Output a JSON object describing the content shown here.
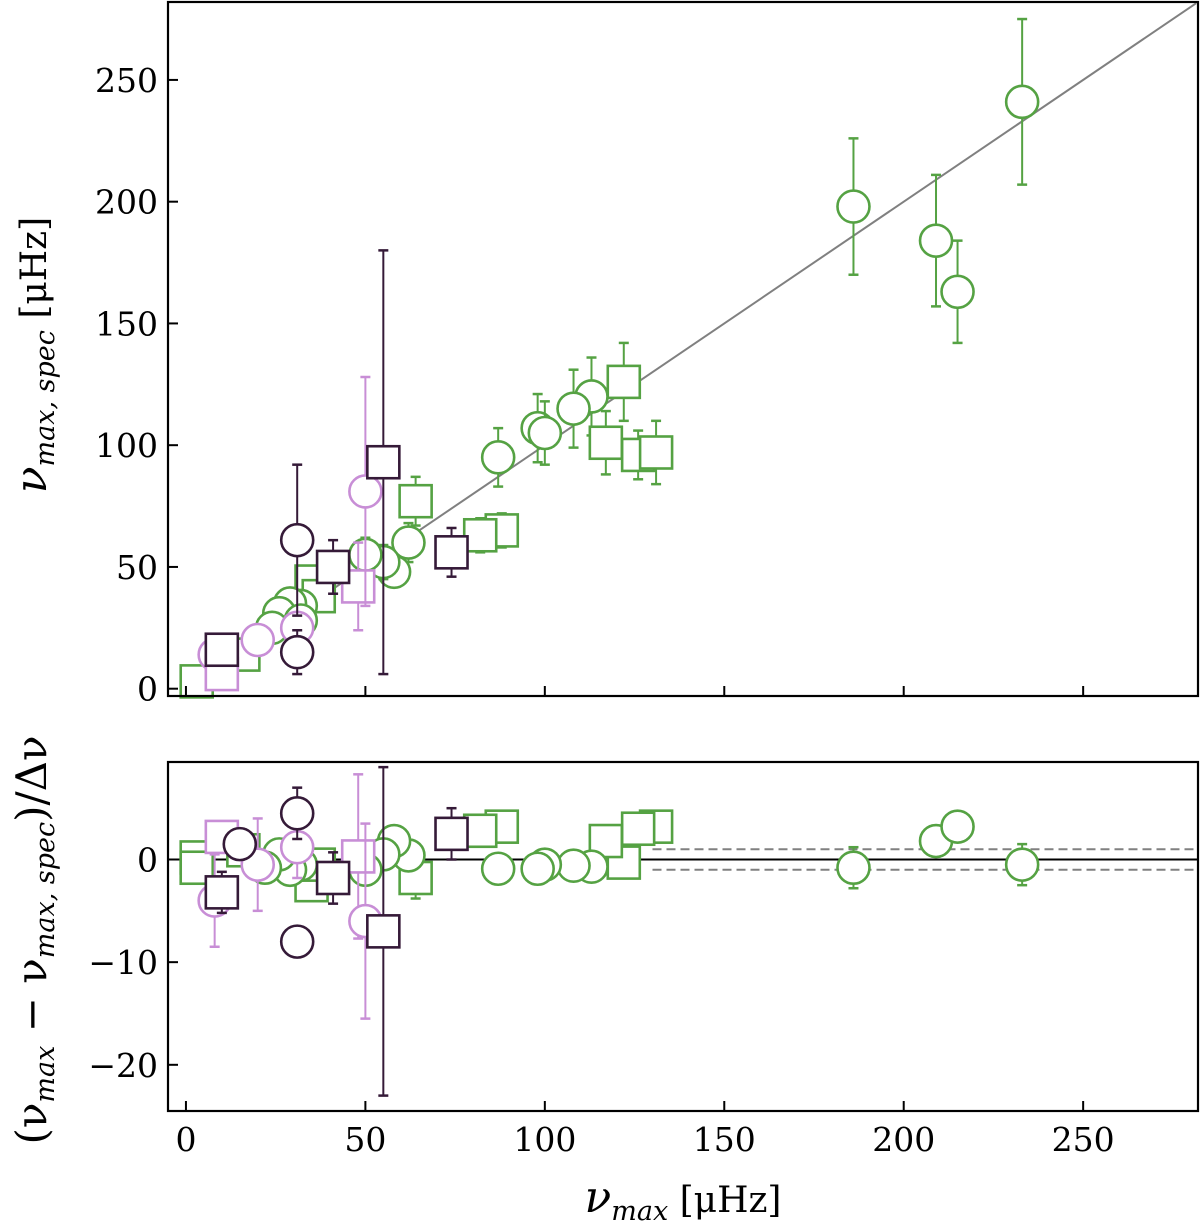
{
  "chart_data": [
    {
      "type": "scatter",
      "panel": "top",
      "ylabel": "νmax, spec [μHz]",
      "ylabel_parts": {
        "base": "ν",
        "sub": "max, spec",
        "unit": " [μHz]"
      },
      "xlim": [
        -5,
        282
      ],
      "ylim": [
        -3,
        282
      ],
      "xticks": [
        0,
        50,
        100,
        150,
        200,
        250
      ],
      "yticks": [
        0,
        50,
        100,
        150,
        200,
        250
      ],
      "ytick_labels": [
        "0",
        "50",
        "100",
        "150",
        "200",
        "250"
      ],
      "reference_line": "y = x",
      "colors": {
        "green": "#55a243",
        "dark": "#351a38",
        "light": "#c88ed6",
        "ref": "#808080"
      },
      "points": [
        {
          "x": 233,
          "y": 241,
          "err": 34,
          "shape": "circle",
          "color": "green"
        },
        {
          "x": 186,
          "y": 198,
          "err": 28,
          "shape": "circle",
          "color": "green"
        },
        {
          "x": 209,
          "y": 184,
          "err": 27,
          "shape": "circle",
          "color": "green"
        },
        {
          "x": 215,
          "y": 163,
          "err": 21,
          "shape": "circle",
          "color": "green"
        },
        {
          "x": 122,
          "y": 126,
          "err": 16,
          "shape": "square",
          "color": "green"
        },
        {
          "x": 113,
          "y": 120,
          "err": 16,
          "shape": "circle",
          "color": "green"
        },
        {
          "x": 108,
          "y": 115,
          "err": 16,
          "shape": "circle",
          "color": "green"
        },
        {
          "x": 98,
          "y": 107,
          "err": 14,
          "shape": "circle",
          "color": "green"
        },
        {
          "x": 100,
          "y": 105,
          "err": 13,
          "shape": "circle",
          "color": "green"
        },
        {
          "x": 117,
          "y": 101,
          "err": 13,
          "shape": "square",
          "color": "green"
        },
        {
          "x": 126,
          "y": 96,
          "err": 10,
          "shape": "square",
          "color": "green"
        },
        {
          "x": 131,
          "y": 97,
          "err": 13,
          "shape": "square",
          "color": "green"
        },
        {
          "x": 87,
          "y": 95,
          "err": 12,
          "shape": "circle",
          "color": "green"
        },
        {
          "x": 64,
          "y": 77,
          "err": 10,
          "shape": "square",
          "color": "green"
        },
        {
          "x": 88,
          "y": 65,
          "err": 7,
          "shape": "square",
          "color": "green"
        },
        {
          "x": 82,
          "y": 63,
          "err": 7,
          "shape": "square",
          "color": "green"
        },
        {
          "x": 62,
          "y": 60,
          "err": 8,
          "shape": "circle",
          "color": "green"
        },
        {
          "x": 58,
          "y": 48,
          "err": 6,
          "shape": "circle",
          "color": "green"
        },
        {
          "x": 55,
          "y": 52,
          "err": 7,
          "shape": "circle",
          "color": "green"
        },
        {
          "x": 50,
          "y": 55,
          "err": 7,
          "shape": "circle",
          "color": "green"
        },
        {
          "x": 35,
          "y": 44,
          "err": 6,
          "shape": "square",
          "color": "green"
        },
        {
          "x": 37,
          "y": 38,
          "err": 5,
          "shape": "square",
          "color": "green"
        },
        {
          "x": 32,
          "y": 34,
          "err": 5,
          "shape": "circle",
          "color": "green"
        },
        {
          "x": 29,
          "y": 35,
          "err": 5,
          "shape": "circle",
          "color": "green"
        },
        {
          "x": 26,
          "y": 31,
          "err": 4,
          "shape": "circle",
          "color": "green"
        },
        {
          "x": 24,
          "y": 25,
          "err": 4,
          "shape": "circle",
          "color": "green"
        },
        {
          "x": 16,
          "y": 14,
          "err": 3,
          "shape": "square",
          "color": "green"
        },
        {
          "x": 3,
          "y": 3,
          "err": 2,
          "shape": "square",
          "color": "green"
        },
        {
          "x": 32,
          "y": 28,
          "err": 4,
          "shape": "circle",
          "color": "green"
        },
        {
          "x": 48,
          "y": 42,
          "err": 18,
          "shape": "square",
          "color": "light"
        },
        {
          "x": 50,
          "y": 81,
          "err": 47,
          "shape": "circle",
          "color": "light"
        },
        {
          "x": 31,
          "y": 25,
          "err": 5,
          "shape": "circle",
          "color": "light"
        },
        {
          "x": 20,
          "y": 20,
          "err": 3,
          "shape": "circle",
          "color": "light"
        },
        {
          "x": 8,
          "y": 14,
          "err": 3,
          "shape": "circle",
          "color": "light"
        },
        {
          "x": 10,
          "y": 6,
          "err": 3,
          "shape": "square",
          "color": "light"
        },
        {
          "x": 55,
          "y": 93,
          "err": 87,
          "shape": "square",
          "color": "dark"
        },
        {
          "x": 31,
          "y": 61,
          "err": 31,
          "shape": "circle",
          "color": "dark"
        },
        {
          "x": 41,
          "y": 50,
          "err": 11,
          "shape": "square",
          "color": "dark"
        },
        {
          "x": 74,
          "y": 56,
          "err": 10,
          "shape": "square",
          "color": "dark"
        },
        {
          "x": 31,
          "y": 15,
          "err": 9,
          "shape": "circle",
          "color": "dark"
        },
        {
          "x": 10,
          "y": 16,
          "err": 3,
          "shape": "square",
          "color": "dark"
        }
      ]
    },
    {
      "type": "scatter",
      "panel": "bottom",
      "xlabel": "νmax [μHz]",
      "xlabel_parts": {
        "base": "ν",
        "sub": "max",
        "unit": " [μHz]"
      },
      "ylabel": "(νmax − νmax, spec)/Δν",
      "ylabel_parts": {
        "open": "(ν",
        "sub1": "max",
        "mid": " − ν",
        "sub2": "max, spec",
        "close": ")/Δν"
      },
      "xlim": [
        -5,
        282
      ],
      "ylim": [
        -24.5,
        9.5
      ],
      "xticks": [
        0,
        50,
        100,
        150,
        200,
        250
      ],
      "xtick_labels": [
        "0",
        "50",
        "100",
        "150",
        "200",
        "250"
      ],
      "yticks": [
        -20,
        -10,
        0
      ],
      "ytick_labels": [
        "−20",
        "−10",
        "0"
      ],
      "zero_line": 0,
      "band": {
        "from": 130,
        "lower": -1,
        "upper": 1
      },
      "points": [
        {
          "x": 233,
          "y": -0.5,
          "err": 2,
          "shape": "circle",
          "color": "green"
        },
        {
          "x": 186,
          "y": -0.8,
          "err": 2,
          "shape": "circle",
          "color": "green"
        },
        {
          "x": 209,
          "y": 1.8,
          "err": 1.5,
          "shape": "circle",
          "color": "green"
        },
        {
          "x": 215,
          "y": 3.2,
          "err": 1,
          "shape": "circle",
          "color": "green"
        },
        {
          "x": 131,
          "y": 3.2,
          "err": 1,
          "shape": "square",
          "color": "green"
        },
        {
          "x": 126,
          "y": 3.0,
          "err": 1,
          "shape": "square",
          "color": "green"
        },
        {
          "x": 122,
          "y": -0.3,
          "err": 1.5,
          "shape": "square",
          "color": "green"
        },
        {
          "x": 117,
          "y": 1.8,
          "err": 1,
          "shape": "square",
          "color": "green"
        },
        {
          "x": 113,
          "y": -0.7,
          "err": 1.5,
          "shape": "circle",
          "color": "green"
        },
        {
          "x": 108,
          "y": -0.6,
          "err": 1.5,
          "shape": "circle",
          "color": "green"
        },
        {
          "x": 100,
          "y": -0.5,
          "err": 1.5,
          "shape": "circle",
          "color": "green"
        },
        {
          "x": 98,
          "y": -0.9,
          "err": 1.5,
          "shape": "circle",
          "color": "green"
        },
        {
          "x": 88,
          "y": 3.2,
          "err": 1,
          "shape": "square",
          "color": "green"
        },
        {
          "x": 82,
          "y": 2.8,
          "err": 1,
          "shape": "square",
          "color": "green"
        },
        {
          "x": 87,
          "y": -0.9,
          "err": 1.2,
          "shape": "circle",
          "color": "green"
        },
        {
          "x": 64,
          "y": -1.8,
          "err": 2,
          "shape": "square",
          "color": "green"
        },
        {
          "x": 62,
          "y": 0.4,
          "err": 1.5,
          "shape": "circle",
          "color": "green"
        },
        {
          "x": 58,
          "y": 1.8,
          "err": 1.2,
          "shape": "circle",
          "color": "green"
        },
        {
          "x": 55,
          "y": 0.5,
          "err": 1.5,
          "shape": "circle",
          "color": "green"
        },
        {
          "x": 50,
          "y": -1.0,
          "err": 1.5,
          "shape": "circle",
          "color": "green"
        },
        {
          "x": 35,
          "y": -2.5,
          "err": 1.5,
          "shape": "square",
          "color": "green"
        },
        {
          "x": 37,
          "y": -0.5,
          "err": 1.5,
          "shape": "square",
          "color": "green"
        },
        {
          "x": 32,
          "y": -0.5,
          "err": 1.5,
          "shape": "circle",
          "color": "green"
        },
        {
          "x": 29,
          "y": -1.0,
          "err": 1.5,
          "shape": "circle",
          "color": "green"
        },
        {
          "x": 26,
          "y": 0.5,
          "err": 1.5,
          "shape": "circle",
          "color": "green"
        },
        {
          "x": 22,
          "y": -0.8,
          "err": 1.5,
          "shape": "circle",
          "color": "green"
        },
        {
          "x": 16,
          "y": 0.9,
          "err": 1.5,
          "shape": "square",
          "color": "green"
        },
        {
          "x": 3,
          "y": 0.2,
          "err": 1,
          "shape": "square",
          "color": "green"
        },
        {
          "x": 3,
          "y": -0.8,
          "err": 1,
          "shape": "square",
          "color": "green"
        },
        {
          "x": 48,
          "y": 0.3,
          "err": 8,
          "shape": "square",
          "color": "light"
        },
        {
          "x": 50,
          "y": -6,
          "err": 9.5,
          "shape": "circle",
          "color": "light"
        },
        {
          "x": 31,
          "y": 1.2,
          "err": 3,
          "shape": "circle",
          "color": "light"
        },
        {
          "x": 20,
          "y": -0.5,
          "err": 4.5,
          "shape": "circle",
          "color": "light"
        },
        {
          "x": 8,
          "y": -4,
          "err": 4.5,
          "shape": "circle",
          "color": "light"
        },
        {
          "x": 10,
          "y": 2.2,
          "err": 1.5,
          "shape": "square",
          "color": "light"
        },
        {
          "x": 55,
          "y": -7,
          "err": 16,
          "shape": "square",
          "color": "dark"
        },
        {
          "x": 31,
          "y": 4.5,
          "err": 2.5,
          "shape": "circle",
          "color": "dark"
        },
        {
          "x": 31,
          "y": -8,
          "err": 0,
          "shape": "circle",
          "color": "dark"
        },
        {
          "x": 41,
          "y": -1.8,
          "err": 2.5,
          "shape": "square",
          "color": "dark"
        },
        {
          "x": 74,
          "y": 2.5,
          "err": 2.5,
          "shape": "square",
          "color": "dark"
        },
        {
          "x": 10,
          "y": -3.2,
          "err": 2,
          "shape": "square",
          "color": "dark"
        },
        {
          "x": 15,
          "y": 1.5,
          "err": 1.5,
          "shape": "circle",
          "color": "dark"
        }
      ]
    }
  ]
}
